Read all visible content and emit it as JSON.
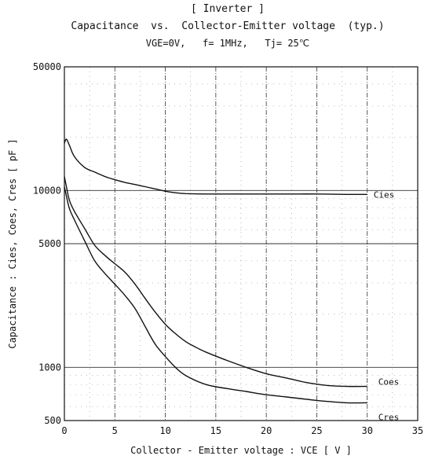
{
  "chart_data": {
    "type": "line",
    "title_lines": [
      "[ Inverter ]",
      "Capacitance  vs.  Collector-Emitter voltage  (typ.)",
      "VGE=0V,   f= 1MHz,   Tj= 25℃"
    ],
    "xlabel": "Collector - Emitter voltage  :  VCE  [ V ]",
    "ylabel": "Capacitance  :  Cies, Coes, Cres  [ pF ]",
    "x_scale": "linear",
    "y_scale": "log",
    "xlim": [
      0,
      35
    ],
    "ylim": [
      500,
      50000
    ],
    "x_ticks": [
      0,
      5,
      10,
      15,
      20,
      25,
      30,
      35
    ],
    "x_tick_labels": [
      "0",
      "5",
      "10",
      "15",
      "20",
      "25",
      "30",
      "35"
    ],
    "y_ticks": [
      500,
      1000,
      5000,
      10000,
      50000
    ],
    "y_tick_labels": [
      "500",
      "1000",
      "5000",
      "10000",
      "50000"
    ],
    "grid": true,
    "series": [
      {
        "name": "Cies",
        "x": [
          0,
          0.2,
          0.5,
          1,
          2,
          3,
          4,
          5,
          6,
          7,
          8,
          9,
          10,
          11,
          12,
          14,
          16,
          18,
          20,
          22,
          25,
          28,
          30
        ],
        "y": [
          18500,
          19500,
          18000,
          15500,
          13500,
          12700,
          12000,
          11500,
          11100,
          10800,
          10500,
          10200,
          9900,
          9700,
          9600,
          9550,
          9550,
          9550,
          9550,
          9550,
          9550,
          9500,
          9500
        ]
      },
      {
        "name": "Coes",
        "x": [
          0,
          0.2,
          0.5,
          1,
          2,
          3,
          4,
          5,
          6,
          7,
          8,
          9,
          10,
          11,
          12,
          13,
          14,
          16,
          18,
          20,
          22,
          24,
          26,
          28,
          30
        ],
        "y": [
          12000,
          10500,
          8800,
          7600,
          6100,
          4900,
          4300,
          3850,
          3450,
          2950,
          2450,
          2050,
          1750,
          1550,
          1400,
          1300,
          1220,
          1100,
          1000,
          920,
          870,
          820,
          790,
          780,
          780
        ]
      },
      {
        "name": "Cres",
        "x": [
          0,
          0.2,
          0.5,
          1,
          2,
          3,
          4,
          5,
          6,
          7,
          8,
          9,
          10,
          11,
          12,
          14,
          16,
          18,
          20,
          22,
          25,
          28,
          30
        ],
        "y": [
          10500,
          9300,
          7900,
          6800,
          5200,
          4000,
          3400,
          2950,
          2550,
          2150,
          1700,
          1350,
          1150,
          1000,
          900,
          800,
          760,
          730,
          700,
          680,
          650,
          630,
          630
        ]
      }
    ]
  }
}
